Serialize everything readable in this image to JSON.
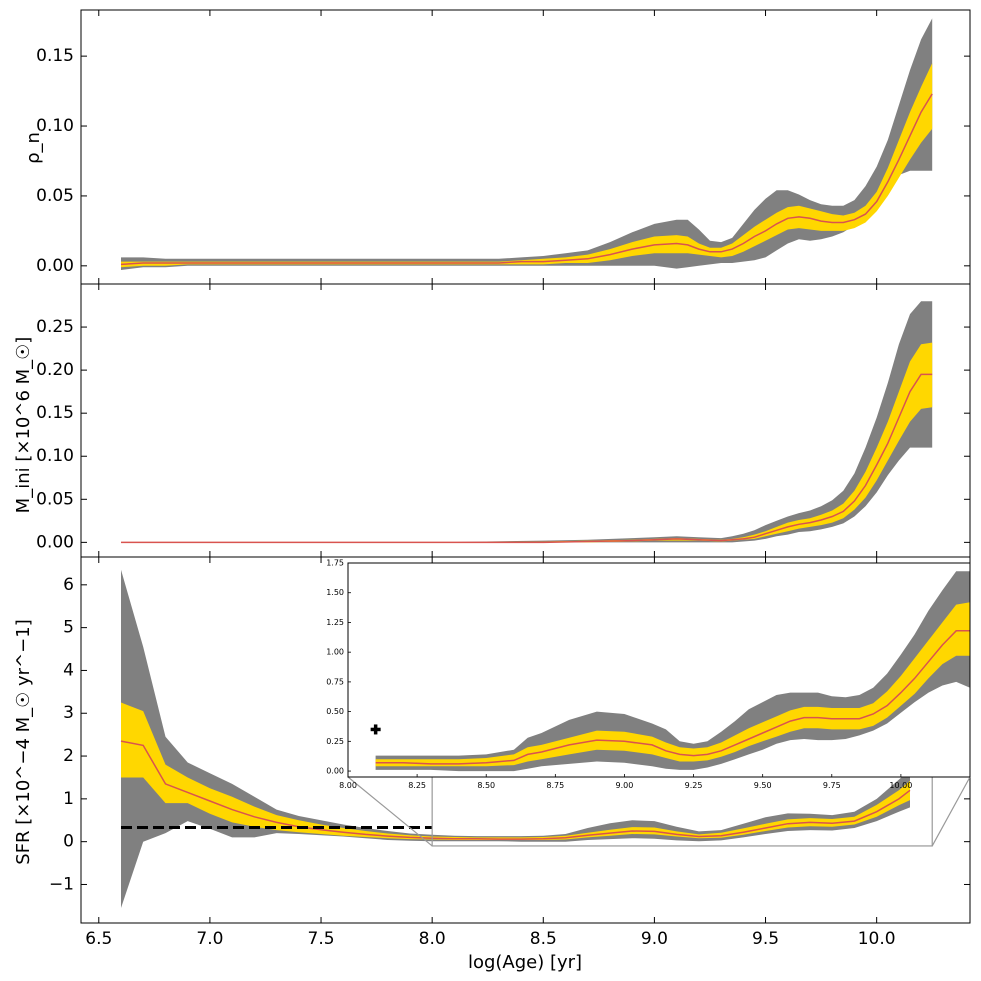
{
  "colors": {
    "outer_band": "#808080",
    "inner_band": "#ffd700",
    "median_line": "#d9534f",
    "reference_line": "#000000"
  },
  "xaxis": {
    "label": "log(Age) [yr]",
    "ticks": [
      "6.5",
      "7.0",
      "7.5",
      "8.0",
      "8.5",
      "9.0",
      "9.5",
      "10.0"
    ],
    "tick_values": [
      6.5,
      7.0,
      7.5,
      8.0,
      8.5,
      9.0,
      9.5,
      10.0
    ],
    "xlim": [
      6.42,
      10.42
    ]
  },
  "chart_data": [
    {
      "type": "area",
      "panel": "top",
      "ylabel": "ρ_n",
      "ylim": [
        -0.013,
        0.183
      ],
      "yticks": [
        "0.00",
        "0.05",
        "0.10",
        "0.15"
      ],
      "ytick_values": [
        0.0,
        0.05,
        0.1,
        0.15
      ],
      "x": [
        6.6,
        6.7,
        6.8,
        6.9,
        7.0,
        7.1,
        7.2,
        7.3,
        7.4,
        7.5,
        7.6,
        7.7,
        7.8,
        7.9,
        8.0,
        8.1,
        8.2,
        8.3,
        8.4,
        8.5,
        8.6,
        8.7,
        8.8,
        8.9,
        9.0,
        9.1,
        9.15,
        9.2,
        9.25,
        9.3,
        9.35,
        9.4,
        9.45,
        9.5,
        9.55,
        9.6,
        9.65,
        9.7,
        9.75,
        9.8,
        9.85,
        9.9,
        9.95,
        10.0,
        10.05,
        10.1,
        10.15,
        10.2,
        10.25
      ],
      "median": [
        0.001,
        0.002,
        0.002,
        0.002,
        0.002,
        0.002,
        0.002,
        0.002,
        0.002,
        0.002,
        0.002,
        0.002,
        0.002,
        0.002,
        0.002,
        0.002,
        0.002,
        0.002,
        0.003,
        0.003,
        0.004,
        0.005,
        0.008,
        0.012,
        0.015,
        0.016,
        0.015,
        0.012,
        0.01,
        0.01,
        0.012,
        0.016,
        0.021,
        0.025,
        0.03,
        0.034,
        0.035,
        0.034,
        0.032,
        0.031,
        0.031,
        0.033,
        0.037,
        0.046,
        0.06,
        0.076,
        0.093,
        0.11,
        0.123
      ],
      "inner_low": [
        -0.001,
        0.0,
        0.0,
        0.001,
        0.001,
        0.001,
        0.001,
        0.001,
        0.001,
        0.001,
        0.001,
        0.001,
        0.001,
        0.001,
        0.001,
        0.001,
        0.001,
        0.001,
        0.001,
        0.001,
        0.002,
        0.002,
        0.004,
        0.007,
        0.009,
        0.009,
        0.009,
        0.008,
        0.007,
        0.006,
        0.007,
        0.01,
        0.014,
        0.018,
        0.022,
        0.026,
        0.027,
        0.026,
        0.025,
        0.025,
        0.025,
        0.027,
        0.031,
        0.039,
        0.05,
        0.063,
        0.076,
        0.088,
        0.098
      ],
      "inner_high": [
        0.003,
        0.003,
        0.003,
        0.003,
        0.003,
        0.003,
        0.003,
        0.003,
        0.003,
        0.003,
        0.003,
        0.003,
        0.003,
        0.003,
        0.003,
        0.003,
        0.003,
        0.003,
        0.004,
        0.005,
        0.006,
        0.008,
        0.012,
        0.017,
        0.021,
        0.022,
        0.021,
        0.016,
        0.013,
        0.013,
        0.016,
        0.022,
        0.028,
        0.033,
        0.038,
        0.042,
        0.043,
        0.041,
        0.039,
        0.037,
        0.036,
        0.038,
        0.043,
        0.053,
        0.07,
        0.09,
        0.11,
        0.128,
        0.145
      ],
      "outer_low": [
        -0.003,
        -0.001,
        -0.001,
        0.0,
        0.0,
        0.0,
        0.0,
        0.0,
        0.0,
        0.0,
        0.0,
        0.0,
        0.0,
        0.0,
        0.0,
        0.0,
        0.0,
        0.0,
        0.0,
        0.0,
        0.0,
        0.0,
        0.0,
        0.0,
        0.0,
        -0.002,
        -0.001,
        0.0,
        0.001,
        0.002,
        0.002,
        0.003,
        0.004,
        0.006,
        0.011,
        0.016,
        0.019,
        0.018,
        0.019,
        0.021,
        0.024,
        0.029,
        0.036,
        0.046,
        0.057,
        0.065,
        0.068,
        0.068,
        0.068
      ],
      "outer_high": [
        0.006,
        0.006,
        0.005,
        0.005,
        0.005,
        0.005,
        0.005,
        0.005,
        0.005,
        0.005,
        0.005,
        0.005,
        0.005,
        0.005,
        0.005,
        0.005,
        0.005,
        0.005,
        0.006,
        0.007,
        0.009,
        0.011,
        0.017,
        0.024,
        0.03,
        0.033,
        0.033,
        0.026,
        0.018,
        0.017,
        0.02,
        0.03,
        0.04,
        0.048,
        0.054,
        0.054,
        0.051,
        0.047,
        0.044,
        0.043,
        0.043,
        0.047,
        0.057,
        0.071,
        0.09,
        0.115,
        0.14,
        0.162,
        0.177
      ]
    },
    {
      "type": "area",
      "panel": "middle",
      "ylabel": "M_ini [×10^6 M_☉]",
      "ylim": [
        -0.017,
        0.3
      ],
      "yticks": [
        "0.00",
        "0.05",
        "0.10",
        "0.15",
        "0.20",
        "0.25"
      ],
      "ytick_values": [
        0.0,
        0.05,
        0.1,
        0.15,
        0.2,
        0.25
      ],
      "x": [
        6.6,
        7.0,
        7.5,
        8.0,
        8.5,
        8.7,
        8.9,
        9.0,
        9.1,
        9.2,
        9.3,
        9.35,
        9.4,
        9.45,
        9.5,
        9.55,
        9.6,
        9.65,
        9.7,
        9.75,
        9.8,
        9.85,
        9.9,
        9.95,
        10.0,
        10.05,
        10.1,
        10.15,
        10.2,
        10.25
      ],
      "median": [
        0.0,
        0.0,
        0.0,
        0.0,
        0.0,
        0.001,
        0.002,
        0.003,
        0.004,
        0.003,
        0.002,
        0.003,
        0.004,
        0.006,
        0.01,
        0.014,
        0.018,
        0.021,
        0.023,
        0.026,
        0.03,
        0.036,
        0.048,
        0.066,
        0.09,
        0.115,
        0.145,
        0.175,
        0.195,
        0.195
      ],
      "inner_low": [
        0.0,
        0.0,
        0.0,
        0.0,
        0.0,
        0.0,
        0.001,
        0.002,
        0.002,
        0.002,
        0.001,
        0.002,
        0.003,
        0.004,
        0.007,
        0.01,
        0.013,
        0.016,
        0.018,
        0.02,
        0.023,
        0.028,
        0.038,
        0.052,
        0.072,
        0.095,
        0.118,
        0.14,
        0.155,
        0.157
      ],
      "inner_high": [
        0.0,
        0.0,
        0.0,
        0.0,
        0.001,
        0.002,
        0.003,
        0.004,
        0.005,
        0.004,
        0.003,
        0.004,
        0.006,
        0.009,
        0.013,
        0.018,
        0.023,
        0.026,
        0.028,
        0.032,
        0.037,
        0.045,
        0.06,
        0.082,
        0.11,
        0.14,
        0.175,
        0.21,
        0.23,
        0.232
      ],
      "outer_low": [
        0.0,
        0.0,
        0.0,
        0.0,
        0.0,
        0.0,
        0.0,
        0.0,
        0.0,
        0.0,
        0.0,
        0.0,
        0.001,
        0.002,
        0.004,
        0.007,
        0.009,
        0.012,
        0.013,
        0.015,
        0.018,
        0.022,
        0.03,
        0.042,
        0.058,
        0.078,
        0.095,
        0.11,
        0.11,
        0.11
      ],
      "outer_high": [
        0.0,
        0.0,
        0.0,
        0.0,
        0.002,
        0.003,
        0.005,
        0.006,
        0.007,
        0.006,
        0.005,
        0.007,
        0.01,
        0.014,
        0.02,
        0.025,
        0.03,
        0.034,
        0.037,
        0.042,
        0.049,
        0.06,
        0.08,
        0.11,
        0.145,
        0.185,
        0.23,
        0.265,
        0.28,
        0.28
      ]
    },
    {
      "type": "area",
      "panel": "bottom",
      "ylabel": "SFR [×10^−4 M_☉ yr^−1]",
      "ylim": [
        -1.9,
        6.65
      ],
      "yticks": [
        "−1",
        "0",
        "1",
        "2",
        "3",
        "4",
        "5",
        "6"
      ],
      "ytick_values": [
        -1,
        0,
        1,
        2,
        3,
        4,
        5,
        6
      ],
      "x": [
        6.6,
        6.7,
        6.8,
        6.9,
        7.0,
        7.1,
        7.2,
        7.3,
        7.4,
        7.5,
        7.6,
        7.7,
        7.8,
        7.9,
        8.0,
        8.1,
        8.2,
        8.3,
        8.4,
        8.5,
        8.6,
        8.7,
        8.8,
        8.9,
        9.0,
        9.1,
        9.2,
        9.3,
        9.4,
        9.5,
        9.6,
        9.7,
        9.8,
        9.9,
        10.0,
        10.1,
        10.15
      ],
      "median": [
        2.35,
        2.25,
        1.35,
        1.15,
        0.95,
        0.75,
        0.58,
        0.45,
        0.35,
        0.28,
        0.22,
        0.17,
        0.13,
        0.1,
        0.08,
        0.07,
        0.07,
        0.06,
        0.06,
        0.07,
        0.09,
        0.15,
        0.2,
        0.25,
        0.24,
        0.17,
        0.12,
        0.14,
        0.22,
        0.32,
        0.42,
        0.45,
        0.43,
        0.48,
        0.7,
        1.0,
        1.2
      ],
      "inner_low": [
        1.5,
        1.5,
        0.9,
        0.9,
        0.65,
        0.45,
        0.35,
        0.27,
        0.22,
        0.18,
        0.14,
        0.11,
        0.08,
        0.06,
        0.05,
        0.04,
        0.04,
        0.04,
        0.04,
        0.04,
        0.05,
        0.1,
        0.14,
        0.18,
        0.17,
        0.12,
        0.08,
        0.09,
        0.16,
        0.25,
        0.33,
        0.36,
        0.35,
        0.4,
        0.58,
        0.85,
        0.97
      ],
      "inner_high": [
        3.25,
        3.05,
        1.8,
        1.5,
        1.25,
        1.05,
        0.82,
        0.62,
        0.5,
        0.4,
        0.32,
        0.25,
        0.19,
        0.15,
        0.12,
        0.11,
        0.1,
        0.1,
        0.1,
        0.11,
        0.14,
        0.21,
        0.28,
        0.34,
        0.33,
        0.24,
        0.17,
        0.21,
        0.31,
        0.42,
        0.52,
        0.55,
        0.53,
        0.58,
        0.86,
        1.2,
        1.42
      ],
      "outer_low": [
        -1.55,
        0.0,
        0.2,
        0.48,
        0.3,
        0.1,
        0.1,
        0.2,
        0.18,
        0.15,
        0.12,
        0.08,
        0.04,
        0.02,
        0.01,
        0.01,
        0.01,
        0.01,
        0.0,
        0.0,
        0.0,
        0.04,
        0.06,
        0.08,
        0.07,
        0.03,
        0.01,
        0.03,
        0.1,
        0.18,
        0.25,
        0.27,
        0.26,
        0.32,
        0.48,
        0.7,
        0.8
      ],
      "outer_high": [
        6.35,
        4.55,
        2.45,
        1.85,
        1.6,
        1.35,
        1.05,
        0.75,
        0.6,
        0.5,
        0.4,
        0.32,
        0.25,
        0.19,
        0.16,
        0.14,
        0.13,
        0.13,
        0.13,
        0.14,
        0.18,
        0.32,
        0.43,
        0.5,
        0.48,
        0.35,
        0.24,
        0.27,
        0.42,
        0.57,
        0.66,
        0.65,
        0.62,
        0.7,
        1.0,
        1.45,
        1.68
      ],
      "reference_line": {
        "x_start": 6.6,
        "x_end": 8.0,
        "y": 0.33,
        "style": "dashed"
      },
      "inset": {
        "xlim": [
          8.0,
          10.25
        ],
        "ylim": [
          -0.05,
          1.75
        ],
        "xticks": [
          "8.00",
          "8.25",
          "8.50",
          "8.75",
          "9.00",
          "9.25",
          "9.50",
          "9.75",
          "10.00"
        ],
        "xtick_values": [
          8.0,
          8.25,
          8.5,
          8.75,
          9.0,
          9.25,
          9.5,
          9.75,
          10.0
        ],
        "yticks": [
          "0.00",
          "0.25",
          "0.50",
          "0.75",
          "1.00",
          "1.25",
          "1.50",
          "1.75"
        ],
        "ytick_values": [
          0.0,
          0.25,
          0.5,
          0.75,
          1.0,
          1.25,
          1.5,
          1.75
        ],
        "source_xrange": [
          8.0,
          10.25
        ],
        "source_yrange": [
          -0.1,
          1.68
        ],
        "marker": {
          "x": 8.1,
          "y": 0.35,
          "symbol": "plus"
        },
        "x": [
          8.1,
          8.2,
          8.3,
          8.4,
          8.5,
          8.6,
          8.65,
          8.7,
          8.8,
          8.9,
          9.0,
          9.1,
          9.15,
          9.2,
          9.25,
          9.3,
          9.35,
          9.4,
          9.45,
          9.5,
          9.55,
          9.6,
          9.65,
          9.7,
          9.75,
          9.8,
          9.85,
          9.9,
          9.95,
          10.0,
          10.05,
          10.1,
          10.15,
          10.2,
          10.25
        ],
        "median": [
          0.07,
          0.07,
          0.06,
          0.06,
          0.07,
          0.09,
          0.14,
          0.16,
          0.22,
          0.26,
          0.25,
          0.22,
          0.17,
          0.14,
          0.13,
          0.14,
          0.17,
          0.22,
          0.27,
          0.32,
          0.37,
          0.42,
          0.45,
          0.45,
          0.44,
          0.44,
          0.44,
          0.48,
          0.55,
          0.66,
          0.78,
          0.92,
          1.06,
          1.18,
          1.18
        ],
        "inner_low": [
          0.04,
          0.04,
          0.04,
          0.04,
          0.04,
          0.05,
          0.08,
          0.1,
          0.14,
          0.18,
          0.17,
          0.14,
          0.11,
          0.08,
          0.08,
          0.09,
          0.12,
          0.16,
          0.21,
          0.25,
          0.29,
          0.33,
          0.36,
          0.36,
          0.35,
          0.35,
          0.35,
          0.38,
          0.45,
          0.55,
          0.65,
          0.78,
          0.9,
          0.97,
          0.97
        ],
        "inner_high": [
          0.1,
          0.1,
          0.1,
          0.1,
          0.11,
          0.14,
          0.2,
          0.22,
          0.28,
          0.34,
          0.33,
          0.29,
          0.24,
          0.2,
          0.19,
          0.2,
          0.24,
          0.3,
          0.36,
          0.41,
          0.46,
          0.51,
          0.54,
          0.54,
          0.53,
          0.53,
          0.53,
          0.57,
          0.67,
          0.8,
          0.95,
          1.1,
          1.25,
          1.4,
          1.42
        ],
        "outer_low": [
          0.01,
          0.01,
          0.01,
          0.0,
          0.0,
          0.0,
          0.02,
          0.04,
          0.06,
          0.08,
          0.07,
          0.04,
          0.02,
          0.01,
          0.01,
          0.03,
          0.06,
          0.1,
          0.14,
          0.18,
          0.23,
          0.26,
          0.27,
          0.26,
          0.26,
          0.27,
          0.3,
          0.34,
          0.4,
          0.49,
          0.58,
          0.66,
          0.72,
          0.75,
          0.7
        ],
        "outer_high": [
          0.13,
          0.13,
          0.13,
          0.13,
          0.14,
          0.18,
          0.28,
          0.32,
          0.43,
          0.5,
          0.48,
          0.4,
          0.35,
          0.25,
          0.23,
          0.25,
          0.33,
          0.42,
          0.52,
          0.58,
          0.64,
          0.66,
          0.66,
          0.66,
          0.63,
          0.62,
          0.64,
          0.7,
          0.82,
          0.98,
          1.15,
          1.35,
          1.52,
          1.68,
          1.68
        ]
      }
    }
  ]
}
